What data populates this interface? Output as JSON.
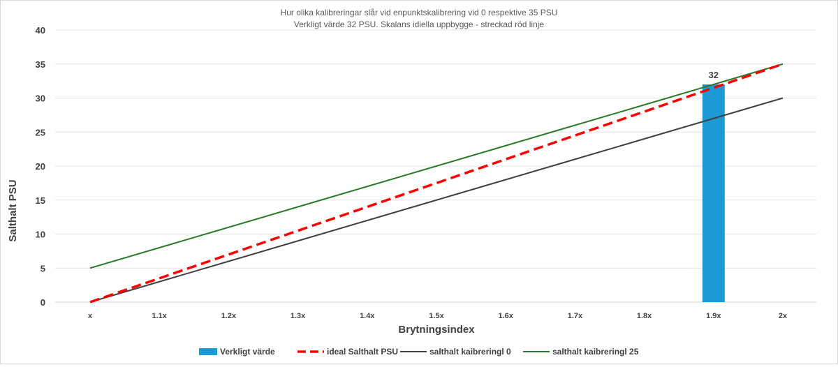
{
  "chart_data": {
    "type": "line",
    "title_lines": [
      "Hur olika kalibreringar slår vid enpunktskalibrering vid 0 respektive 35 PSU",
      "Verkligt värde 32 PSU. Skalans idiella uppbygge - streckad röd linje"
    ],
    "xlabel": "Brytningsindex",
    "ylabel": "Salthalt PSU",
    "categories": [
      "x",
      "1.1x",
      "1.2x",
      "1.3x",
      "1.4x",
      "1.5x",
      "1.6x",
      "1.7x",
      "1.8x",
      "1.9x",
      "2x"
    ],
    "ylim": [
      0,
      40
    ],
    "yticks": [
      0,
      5,
      10,
      15,
      20,
      25,
      30,
      35,
      40
    ],
    "grid": true,
    "legend_position": "bottom",
    "bar_series": {
      "name": "Verkligt värde",
      "color": "#1b9ad6",
      "values": [
        null,
        null,
        null,
        null,
        null,
        null,
        null,
        null,
        null,
        32,
        null
      ],
      "data_label": "32"
    },
    "series": [
      {
        "name": "ideal Salthalt PSU",
        "color": "#ff0000",
        "style": "dashed",
        "values": [
          0,
          3.5,
          7,
          10.5,
          14,
          17.5,
          21,
          24.5,
          28,
          31.5,
          35
        ]
      },
      {
        "name": "salthalt kaibreringl 0",
        "color": "#404040",
        "style": "solid",
        "values": [
          0,
          3,
          6,
          9,
          12,
          15,
          18,
          21,
          24,
          27,
          30
        ]
      },
      {
        "name": "salthalt kaibreringl 25",
        "color": "#2a7a2a",
        "style": "solid",
        "values": [
          5,
          8,
          11,
          14,
          17,
          20,
          23,
          26,
          29,
          32,
          35
        ]
      }
    ]
  }
}
